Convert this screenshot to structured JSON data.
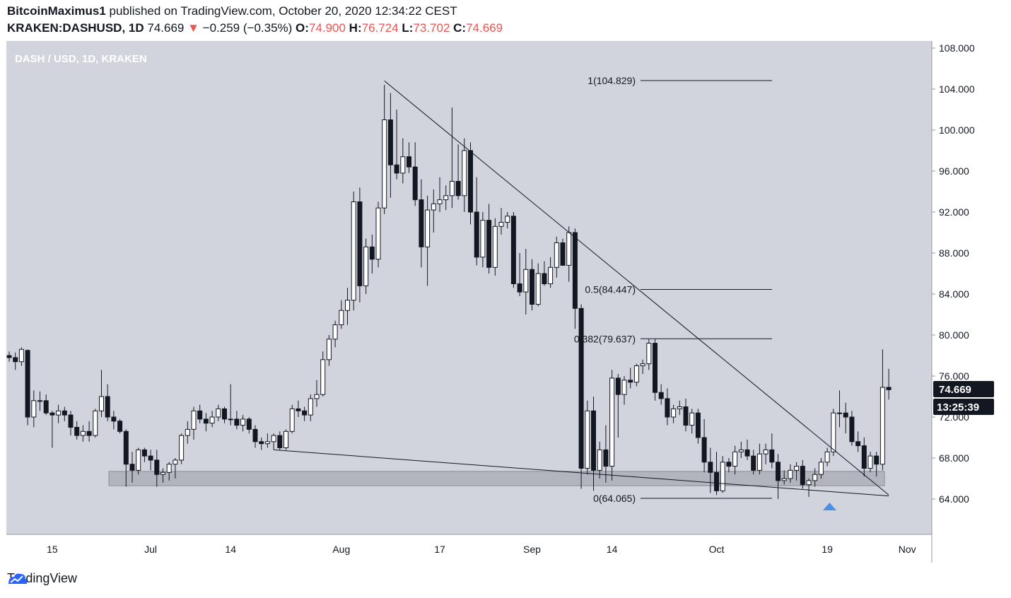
{
  "header": {
    "author": "BitcoinMaximus1",
    "published_text": "published on TradingView.com, October 20, 2020 12:34:22 CEST",
    "symbol": "KRAKEN:DASHUSD, 1D",
    "last": "74.669",
    "arrow": "▼",
    "change": "−0.259 (−0.35%)",
    "o_label": "O:",
    "o_value": "74.900",
    "h_label": "H:",
    "h_value": "76.724",
    "l_label": "L:",
    "l_value": "73.702",
    "c_label": "C:",
    "c_value": "74.669"
  },
  "chart_data": {
    "type": "candlestick",
    "title": "DASH / USD, 1D, KRAKEN",
    "currency": "USD",
    "y_ticks": [
      "64.000",
      "68.000",
      "72.000",
      "76.000",
      "80.000",
      "84.000",
      "88.000",
      "92.000",
      "96.000",
      "100.000",
      "104.000",
      "108.000"
    ],
    "x_ticks": [
      "15",
      "Jul",
      "14",
      "Aug",
      "17",
      "Sep",
      "14",
      "Oct",
      "19",
      "Nov"
    ],
    "price_label": "74.669",
    "countdown_label": "13:25:39",
    "fib_levels": [
      {
        "label": "1(104.829)",
        "value": 104.829
      },
      {
        "label": "0.5(84.447)",
        "value": 84.447
      },
      {
        "label": "0.382(79.637)",
        "value": 79.637
      },
      {
        "label": "0(64.065)",
        "value": 64.065
      }
    ],
    "support_zone": [
      65.3,
      66.7
    ],
    "candles": [
      {
        "date": "2020-06-08",
        "o": 78.0,
        "h": 78.4,
        "l": 77.4,
        "c": 77.8
      },
      {
        "date": "2020-06-09",
        "o": 77.8,
        "h": 78.3,
        "l": 76.6,
        "c": 77.4
      },
      {
        "date": "2020-06-10",
        "o": 77.4,
        "h": 78.8,
        "l": 77.0,
        "c": 78.6
      },
      {
        "date": "2020-06-11",
        "o": 78.5,
        "h": 78.6,
        "l": 71.2,
        "c": 72.0
      },
      {
        "date": "2020-06-12",
        "o": 72.0,
        "h": 74.6,
        "l": 71.0,
        "c": 73.6
      },
      {
        "date": "2020-06-13",
        "o": 73.6,
        "h": 74.5,
        "l": 72.6,
        "c": 73.6
      },
      {
        "date": "2020-06-14",
        "o": 73.6,
        "h": 74.2,
        "l": 72.2,
        "c": 72.4
      },
      {
        "date": "2020-06-15",
        "o": 72.4,
        "h": 72.6,
        "l": 69.0,
        "c": 72.2
      },
      {
        "date": "2020-06-16",
        "o": 72.2,
        "h": 73.2,
        "l": 71.4,
        "c": 72.6
      },
      {
        "date": "2020-06-17",
        "o": 72.6,
        "h": 73.0,
        "l": 71.6,
        "c": 72.2
      },
      {
        "date": "2020-06-18",
        "o": 72.2,
        "h": 72.6,
        "l": 70.2,
        "c": 71.0
      },
      {
        "date": "2020-06-19",
        "o": 71.0,
        "h": 71.6,
        "l": 69.8,
        "c": 70.2
      },
      {
        "date": "2020-06-20",
        "o": 70.2,
        "h": 71.2,
        "l": 69.6,
        "c": 70.6
      },
      {
        "date": "2020-06-21",
        "o": 70.6,
        "h": 71.6,
        "l": 69.6,
        "c": 70.2
      },
      {
        "date": "2020-06-22",
        "o": 70.2,
        "h": 72.8,
        "l": 70.0,
        "c": 72.6
      },
      {
        "date": "2020-06-23",
        "o": 72.6,
        "h": 76.6,
        "l": 72.0,
        "c": 74.0
      },
      {
        "date": "2020-06-24",
        "o": 74.0,
        "h": 75.2,
        "l": 71.6,
        "c": 72.0
      },
      {
        "date": "2020-06-25",
        "o": 72.0,
        "h": 72.6,
        "l": 70.8,
        "c": 71.6
      },
      {
        "date": "2020-06-26",
        "o": 71.6,
        "h": 71.8,
        "l": 70.4,
        "c": 70.6
      },
      {
        "date": "2020-06-27",
        "o": 70.6,
        "h": 70.8,
        "l": 65.2,
        "c": 67.4
      },
      {
        "date": "2020-06-28",
        "o": 67.4,
        "h": 68.6,
        "l": 65.6,
        "c": 66.8
      },
      {
        "date": "2020-06-29",
        "o": 66.8,
        "h": 69.0,
        "l": 66.4,
        "c": 68.8
      },
      {
        "date": "2020-06-30",
        "o": 68.8,
        "h": 69.0,
        "l": 67.6,
        "c": 68.2
      },
      {
        "date": "2020-07-01",
        "o": 68.2,
        "h": 68.8,
        "l": 66.8,
        "c": 67.8
      },
      {
        "date": "2020-07-02",
        "o": 67.8,
        "h": 68.8,
        "l": 65.2,
        "c": 66.4
      },
      {
        "date": "2020-07-03",
        "o": 66.4,
        "h": 67.0,
        "l": 65.6,
        "c": 66.6
      },
      {
        "date": "2020-07-04",
        "o": 66.6,
        "h": 67.6,
        "l": 65.8,
        "c": 67.4
      },
      {
        "date": "2020-07-05",
        "o": 67.4,
        "h": 68.0,
        "l": 66.0,
        "c": 67.8
      },
      {
        "date": "2020-07-06",
        "o": 67.8,
        "h": 70.4,
        "l": 67.4,
        "c": 70.2
      },
      {
        "date": "2020-07-07",
        "o": 70.2,
        "h": 71.6,
        "l": 69.4,
        "c": 70.8
      },
      {
        "date": "2020-07-08",
        "o": 70.8,
        "h": 73.0,
        "l": 69.8,
        "c": 72.6
      },
      {
        "date": "2020-07-09",
        "o": 72.6,
        "h": 73.2,
        "l": 71.4,
        "c": 71.8
      },
      {
        "date": "2020-07-10",
        "o": 71.8,
        "h": 72.4,
        "l": 70.6,
        "c": 71.4
      },
      {
        "date": "2020-07-11",
        "o": 71.4,
        "h": 72.6,
        "l": 71.0,
        "c": 72.0
      },
      {
        "date": "2020-07-12",
        "o": 72.0,
        "h": 73.2,
        "l": 71.6,
        "c": 72.8
      },
      {
        "date": "2020-07-13",
        "o": 72.8,
        "h": 73.0,
        "l": 71.4,
        "c": 71.8
      },
      {
        "date": "2020-07-14",
        "o": 71.8,
        "h": 75.2,
        "l": 71.2,
        "c": 71.8
      },
      {
        "date": "2020-07-15",
        "o": 71.8,
        "h": 72.6,
        "l": 70.8,
        "c": 71.2
      },
      {
        "date": "2020-07-16",
        "o": 71.2,
        "h": 72.2,
        "l": 70.6,
        "c": 71.8
      },
      {
        "date": "2020-07-17",
        "o": 71.8,
        "h": 72.0,
        "l": 70.4,
        "c": 70.8
      },
      {
        "date": "2020-07-18",
        "o": 70.8,
        "h": 71.2,
        "l": 69.0,
        "c": 69.6
      },
      {
        "date": "2020-07-19",
        "o": 69.6,
        "h": 70.0,
        "l": 68.8,
        "c": 69.4
      },
      {
        "date": "2020-07-20",
        "o": 69.4,
        "h": 70.4,
        "l": 69.0,
        "c": 69.6
      },
      {
        "date": "2020-07-21",
        "o": 69.6,
        "h": 70.4,
        "l": 68.8,
        "c": 70.2
      },
      {
        "date": "2020-07-22",
        "o": 70.2,
        "h": 70.6,
        "l": 68.8,
        "c": 69.0
      },
      {
        "date": "2020-07-23",
        "o": 69.0,
        "h": 70.8,
        "l": 68.8,
        "c": 70.6
      },
      {
        "date": "2020-07-24",
        "o": 70.6,
        "h": 73.2,
        "l": 70.4,
        "c": 72.8
      },
      {
        "date": "2020-07-25",
        "o": 72.8,
        "h": 73.6,
        "l": 72.0,
        "c": 72.6
      },
      {
        "date": "2020-07-26",
        "o": 72.6,
        "h": 73.0,
        "l": 71.6,
        "c": 72.2
      },
      {
        "date": "2020-07-27",
        "o": 72.2,
        "h": 74.2,
        "l": 71.6,
        "c": 73.8
      },
      {
        "date": "2020-07-28",
        "o": 73.8,
        "h": 75.6,
        "l": 73.0,
        "c": 74.2
      },
      {
        "date": "2020-07-29",
        "o": 74.2,
        "h": 78.4,
        "l": 74.0,
        "c": 77.6
      },
      {
        "date": "2020-07-30",
        "o": 77.6,
        "h": 80.0,
        "l": 77.0,
        "c": 79.6
      },
      {
        "date": "2020-07-31",
        "o": 79.6,
        "h": 81.4,
        "l": 78.8,
        "c": 81.0
      },
      {
        "date": "2020-08-01",
        "o": 81.0,
        "h": 83.4,
        "l": 80.6,
        "c": 82.4
      },
      {
        "date": "2020-08-02",
        "o": 82.4,
        "h": 84.6,
        "l": 81.0,
        "c": 83.4
      },
      {
        "date": "2020-08-03",
        "o": 83.4,
        "h": 94.0,
        "l": 82.4,
        "c": 93.0
      },
      {
        "date": "2020-08-04",
        "o": 93.0,
        "h": 94.4,
        "l": 83.2,
        "c": 84.8
      },
      {
        "date": "2020-08-05",
        "o": 84.8,
        "h": 89.4,
        "l": 84.0,
        "c": 88.6
      },
      {
        "date": "2020-08-06",
        "o": 88.6,
        "h": 89.8,
        "l": 86.0,
        "c": 87.4
      },
      {
        "date": "2020-08-07",
        "o": 87.4,
        "h": 93.0,
        "l": 86.6,
        "c": 92.4
      },
      {
        "date": "2020-08-08",
        "o": 92.4,
        "h": 104.4,
        "l": 91.8,
        "c": 101.0
      },
      {
        "date": "2020-08-09",
        "o": 101.0,
        "h": 103.6,
        "l": 93.4,
        "c": 96.6
      },
      {
        "date": "2020-08-10",
        "o": 96.6,
        "h": 102.0,
        "l": 95.2,
        "c": 95.8
      },
      {
        "date": "2020-08-11",
        "o": 95.8,
        "h": 99.2,
        "l": 94.8,
        "c": 97.4
      },
      {
        "date": "2020-08-12",
        "o": 97.4,
        "h": 98.8,
        "l": 95.8,
        "c": 96.4
      },
      {
        "date": "2020-08-13",
        "o": 96.4,
        "h": 98.8,
        "l": 92.6,
        "c": 93.2
      },
      {
        "date": "2020-08-14",
        "o": 93.2,
        "h": 95.2,
        "l": 86.6,
        "c": 88.6
      },
      {
        "date": "2020-08-15",
        "o": 88.6,
        "h": 93.6,
        "l": 84.8,
        "c": 92.2
      },
      {
        "date": "2020-08-16",
        "o": 92.2,
        "h": 94.2,
        "l": 90.0,
        "c": 92.8
      },
      {
        "date": "2020-08-17",
        "o": 92.8,
        "h": 95.4,
        "l": 92.0,
        "c": 93.2
      },
      {
        "date": "2020-08-18",
        "o": 93.2,
        "h": 94.6,
        "l": 92.2,
        "c": 93.6
      },
      {
        "date": "2020-08-19",
        "o": 93.6,
        "h": 102.2,
        "l": 92.4,
        "c": 95.0
      },
      {
        "date": "2020-08-20",
        "o": 95.0,
        "h": 98.6,
        "l": 93.2,
        "c": 93.6
      },
      {
        "date": "2020-08-21",
        "o": 93.6,
        "h": 99.2,
        "l": 92.0,
        "c": 98.0
      },
      {
        "date": "2020-08-22",
        "o": 98.0,
        "h": 98.8,
        "l": 90.8,
        "c": 92.0
      },
      {
        "date": "2020-08-23",
        "o": 92.0,
        "h": 95.4,
        "l": 86.8,
        "c": 87.6
      },
      {
        "date": "2020-08-24",
        "o": 87.6,
        "h": 92.0,
        "l": 86.6,
        "c": 91.2
      },
      {
        "date": "2020-08-25",
        "o": 91.2,
        "h": 92.8,
        "l": 86.0,
        "c": 86.6
      },
      {
        "date": "2020-08-26",
        "o": 86.6,
        "h": 91.4,
        "l": 85.8,
        "c": 90.6
      },
      {
        "date": "2020-08-27",
        "o": 90.6,
        "h": 92.4,
        "l": 89.8,
        "c": 91.0
      },
      {
        "date": "2020-08-28",
        "o": 91.0,
        "h": 92.0,
        "l": 90.4,
        "c": 91.6
      },
      {
        "date": "2020-08-29",
        "o": 91.6,
        "h": 92.0,
        "l": 84.6,
        "c": 85.0
      },
      {
        "date": "2020-08-30",
        "o": 85.0,
        "h": 88.0,
        "l": 83.8,
        "c": 84.2
      },
      {
        "date": "2020-08-31",
        "o": 84.2,
        "h": 88.4,
        "l": 82.0,
        "c": 86.4
      },
      {
        "date": "2020-09-01",
        "o": 86.4,
        "h": 87.4,
        "l": 82.4,
        "c": 83.0
      },
      {
        "date": "2020-09-02",
        "o": 83.0,
        "h": 87.0,
        "l": 82.8,
        "c": 86.0
      },
      {
        "date": "2020-09-03",
        "o": 86.0,
        "h": 87.2,
        "l": 84.8,
        "c": 85.0
      },
      {
        "date": "2020-09-04",
        "o": 85.0,
        "h": 87.6,
        "l": 84.6,
        "c": 86.6
      },
      {
        "date": "2020-09-05",
        "o": 86.6,
        "h": 89.6,
        "l": 85.6,
        "c": 89.0
      },
      {
        "date": "2020-09-06",
        "o": 89.0,
        "h": 89.4,
        "l": 86.8,
        "c": 86.8
      },
      {
        "date": "2020-09-07",
        "o": 86.8,
        "h": 90.6,
        "l": 85.2,
        "c": 90.0
      },
      {
        "date": "2020-09-08",
        "o": 90.0,
        "h": 90.4,
        "l": 80.6,
        "c": 82.6
      },
      {
        "date": "2020-09-09",
        "o": 82.6,
        "h": 83.0,
        "l": 65.0,
        "c": 67.0
      },
      {
        "date": "2020-09-10",
        "o": 67.0,
        "h": 73.6,
        "l": 66.4,
        "c": 72.6
      },
      {
        "date": "2020-09-11",
        "o": 72.6,
        "h": 74.0,
        "l": 64.8,
        "c": 66.8
      },
      {
        "date": "2020-09-12",
        "o": 66.8,
        "h": 69.6,
        "l": 66.0,
        "c": 68.8
      },
      {
        "date": "2020-09-13",
        "o": 68.8,
        "h": 71.2,
        "l": 65.6,
        "c": 67.2
      },
      {
        "date": "2020-09-14",
        "o": 67.2,
        "h": 76.6,
        "l": 65.8,
        "c": 75.8
      },
      {
        "date": "2020-09-15",
        "o": 75.8,
        "h": 76.2,
        "l": 70.0,
        "c": 74.2
      },
      {
        "date": "2020-09-16",
        "o": 74.2,
        "h": 76.0,
        "l": 73.2,
        "c": 75.6
      },
      {
        "date": "2020-09-17",
        "o": 75.6,
        "h": 76.8,
        "l": 74.8,
        "c": 75.4
      },
      {
        "date": "2020-09-18",
        "o": 75.4,
        "h": 77.2,
        "l": 75.0,
        "c": 77.0
      },
      {
        "date": "2020-09-19",
        "o": 77.0,
        "h": 77.6,
        "l": 76.2,
        "c": 77.2
      },
      {
        "date": "2020-09-20",
        "o": 77.2,
        "h": 79.6,
        "l": 76.6,
        "c": 79.2
      },
      {
        "date": "2020-09-21",
        "o": 79.2,
        "h": 79.6,
        "l": 73.6,
        "c": 74.4
      },
      {
        "date": "2020-09-22",
        "o": 74.4,
        "h": 75.2,
        "l": 73.2,
        "c": 73.8
      },
      {
        "date": "2020-09-23",
        "o": 73.8,
        "h": 74.8,
        "l": 71.2,
        "c": 72.0
      },
      {
        "date": "2020-09-24",
        "o": 72.0,
        "h": 73.2,
        "l": 71.4,
        "c": 72.8
      },
      {
        "date": "2020-09-25",
        "o": 72.8,
        "h": 73.6,
        "l": 72.2,
        "c": 73.0
      },
      {
        "date": "2020-09-26",
        "o": 73.0,
        "h": 73.8,
        "l": 70.6,
        "c": 71.2
      },
      {
        "date": "2020-09-27",
        "o": 71.2,
        "h": 72.8,
        "l": 70.4,
        "c": 72.4
      },
      {
        "date": "2020-09-28",
        "o": 72.4,
        "h": 72.8,
        "l": 69.4,
        "c": 70.0
      },
      {
        "date": "2020-09-29",
        "o": 70.0,
        "h": 71.8,
        "l": 66.6,
        "c": 67.6
      },
      {
        "date": "2020-09-30",
        "o": 67.6,
        "h": 69.0,
        "l": 64.6,
        "c": 66.6
      },
      {
        "date": "2020-10-01",
        "o": 66.6,
        "h": 68.6,
        "l": 64.4,
        "c": 64.8
      },
      {
        "date": "2020-10-02",
        "o": 64.8,
        "h": 68.2,
        "l": 64.6,
        "c": 67.6
      },
      {
        "date": "2020-10-03",
        "o": 67.6,
        "h": 68.0,
        "l": 66.6,
        "c": 67.2
      },
      {
        "date": "2020-10-04",
        "o": 67.2,
        "h": 69.2,
        "l": 66.4,
        "c": 68.6
      },
      {
        "date": "2020-10-05",
        "o": 68.6,
        "h": 69.6,
        "l": 68.0,
        "c": 68.8
      },
      {
        "date": "2020-10-06",
        "o": 68.8,
        "h": 69.8,
        "l": 67.8,
        "c": 68.2
      },
      {
        "date": "2020-10-07",
        "o": 68.2,
        "h": 68.8,
        "l": 66.4,
        "c": 66.8
      },
      {
        "date": "2020-10-08",
        "o": 66.8,
        "h": 69.4,
        "l": 66.4,
        "c": 68.4
      },
      {
        "date": "2020-10-09",
        "o": 68.4,
        "h": 69.4,
        "l": 67.4,
        "c": 68.8
      },
      {
        "date": "2020-10-10",
        "o": 68.8,
        "h": 70.4,
        "l": 67.0,
        "c": 67.6
      },
      {
        "date": "2020-10-11",
        "o": 67.6,
        "h": 68.4,
        "l": 64.0,
        "c": 65.8
      },
      {
        "date": "2020-10-12",
        "o": 65.8,
        "h": 66.8,
        "l": 65.4,
        "c": 66.0
      },
      {
        "date": "2020-10-13",
        "o": 66.0,
        "h": 67.4,
        "l": 65.6,
        "c": 66.8
      },
      {
        "date": "2020-10-14",
        "o": 66.8,
        "h": 67.6,
        "l": 65.8,
        "c": 67.2
      },
      {
        "date": "2020-10-15",
        "o": 67.2,
        "h": 67.8,
        "l": 65.0,
        "c": 65.4
      },
      {
        "date": "2020-10-16",
        "o": 65.4,
        "h": 66.0,
        "l": 64.2,
        "c": 65.8
      },
      {
        "date": "2020-10-17",
        "o": 65.8,
        "h": 67.0,
        "l": 65.2,
        "c": 66.4
      },
      {
        "date": "2020-10-18",
        "o": 66.4,
        "h": 68.0,
        "l": 66.0,
        "c": 67.6
      },
      {
        "date": "2020-10-19",
        "o": 67.6,
        "h": 69.0,
        "l": 67.2,
        "c": 68.6
      },
      {
        "date": "2020-10-20",
        "o": 68.6,
        "h": 72.8,
        "l": 68.2,
        "c": 72.4
      },
      {
        "date": "2020-10-21",
        "o": 72.4,
        "h": 74.6,
        "l": 71.0,
        "c": 72.4
      },
      {
        "date": "2020-10-22",
        "o": 72.4,
        "h": 73.4,
        "l": 70.4,
        "c": 72.0
      },
      {
        "date": "2020-10-23",
        "o": 72.0,
        "h": 72.6,
        "l": 69.2,
        "c": 69.6
      },
      {
        "date": "2020-10-24",
        "o": 69.6,
        "h": 70.6,
        "l": 68.6,
        "c": 69.2
      },
      {
        "date": "2020-10-25",
        "o": 69.2,
        "h": 70.0,
        "l": 66.2,
        "c": 67.0
      },
      {
        "date": "2020-10-26",
        "o": 67.0,
        "h": 68.6,
        "l": 66.6,
        "c": 68.2
      },
      {
        "date": "2020-10-27",
        "o": 68.2,
        "h": 68.6,
        "l": 66.2,
        "c": 67.4
      },
      {
        "date": "2020-10-28",
        "o": 67.4,
        "h": 78.6,
        "l": 66.8,
        "c": 74.9
      },
      {
        "date": "2020-10-29",
        "o": 74.9,
        "h": 76.7,
        "l": 73.7,
        "c": 74.669
      }
    ],
    "trendlines": [
      {
        "from": {
          "date": "2020-08-08",
          "value": 104.8
        },
        "to": {
          "date": "2020-10-29",
          "value": 64.4
        }
      },
      {
        "from": {
          "date": "2020-07-21",
          "value": 68.8
        },
        "to": {
          "date": "2020-10-29",
          "value": 64.3
        }
      }
    ]
  },
  "footer": {
    "brand": "TradingView"
  },
  "colors": {
    "pane_bg": "#d1d4dc",
    "accent_blue": "#2962ff",
    "down_red": "#ef5350",
    "label_dark": "#131722",
    "zone_gray": "#b2b5be"
  }
}
